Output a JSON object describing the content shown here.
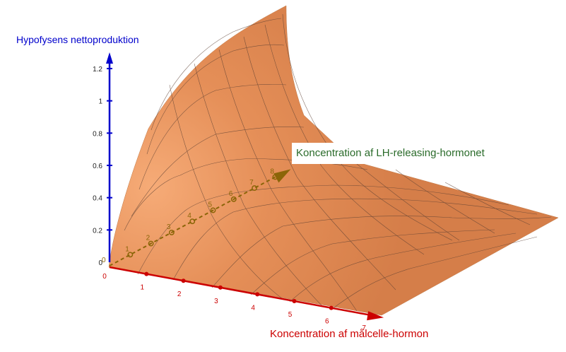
{
  "chart_data": {
    "type": "surface-3d",
    "z_axis": {
      "label": "Hypofysens nettoproduktion",
      "ticks": [
        "0",
        "0.2",
        "0.4",
        "0.6",
        "0.8",
        "1",
        "1.2"
      ],
      "color": "#0000cc"
    },
    "x_axis": {
      "label": "Koncentration af målcelle-hormon",
      "ticks": [
        "0",
        "1",
        "2",
        "3",
        "4",
        "5",
        "6",
        "7"
      ],
      "color": "#cc0000"
    },
    "y_axis": {
      "label": "Koncentration af LH-releasing-hormonet",
      "ticks": [
        "1",
        "2",
        "3",
        "4",
        "5",
        "6",
        "7",
        "8"
      ],
      "color": "#8b6508"
    },
    "surface_color": "#e8925a",
    "grid_on": true
  }
}
